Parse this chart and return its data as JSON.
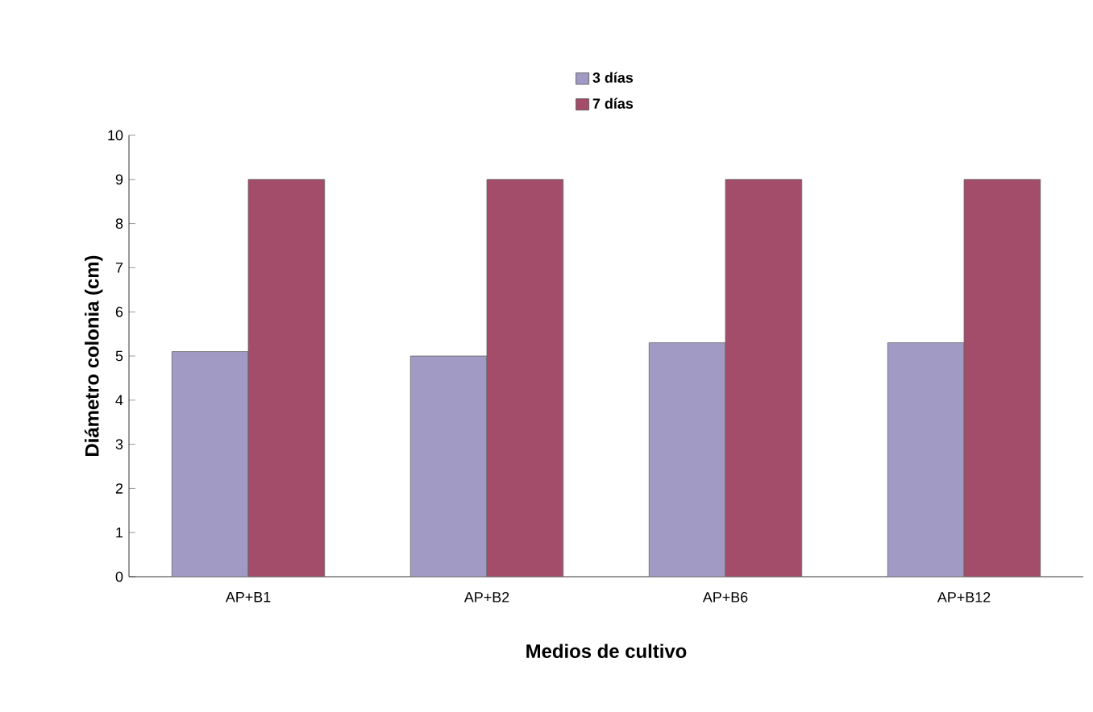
{
  "chart_data": {
    "type": "bar",
    "xlabel": "Medios de cultivo",
    "ylabel": "Diámetro colonia (cm)",
    "categories": [
      "AP+B1",
      "AP+B2",
      "AP+B6",
      "AP+B12"
    ],
    "series": [
      {
        "name": "3 días",
        "color": "#a09ac4",
        "values": [
          5.1,
          5.0,
          5.3,
          5.3
        ]
      },
      {
        "name": "7 días",
        "color": "#a34d6a",
        "values": [
          9.0,
          9.0,
          9.0,
          9.0
        ]
      }
    ],
    "ylim": [
      0,
      10
    ],
    "yticks": [
      0,
      1,
      2,
      3,
      4,
      5,
      6,
      7,
      8,
      9,
      10
    ],
    "grid": false,
    "legend": "top"
  }
}
